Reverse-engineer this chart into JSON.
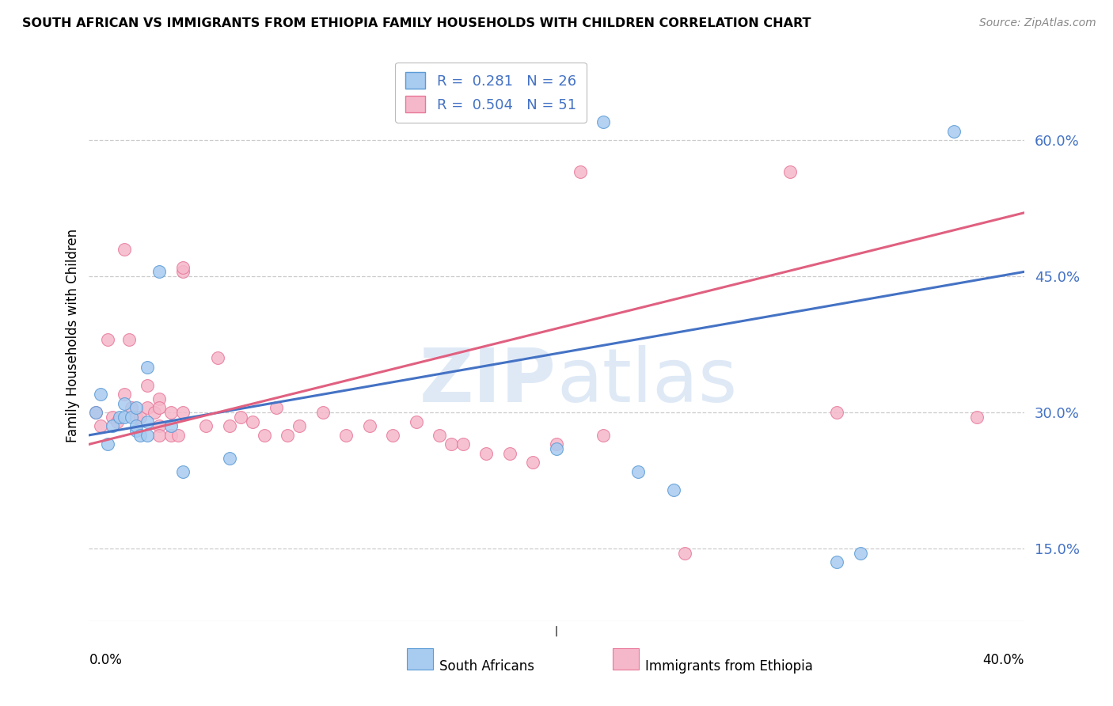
{
  "title": "SOUTH AFRICAN VS IMMIGRANTS FROM ETHIOPIA FAMILY HOUSEHOLDS WITH CHILDREN CORRELATION CHART",
  "source": "Source: ZipAtlas.com",
  "ylabel": "Family Households with Children",
  "ytick_labels": [
    "15.0%",
    "30.0%",
    "45.0%",
    "60.0%"
  ],
  "ytick_values": [
    0.15,
    0.3,
    0.45,
    0.6
  ],
  "xlim": [
    0.0,
    0.4
  ],
  "ylim": [
    0.07,
    0.7
  ],
  "watermark_zip": "ZIP",
  "watermark_atlas": "atlas",
  "legend_blue_r_val": "0.281",
  "legend_blue_n_val": "26",
  "legend_pink_r_val": "0.504",
  "legend_pink_n_val": "51",
  "legend_label_blue": "South Africans",
  "legend_label_pink": "Immigrants from Ethiopia",
  "blue_fill_color": "#A8CBF0",
  "pink_fill_color": "#F5B8CA",
  "blue_edge_color": "#5B9BD5",
  "pink_edge_color": "#E8789A",
  "blue_line_color": "#4472C4",
  "pink_line_color": "#E06080",
  "blue_scatter_x": [
    0.003,
    0.005,
    0.008,
    0.01,
    0.013,
    0.015,
    0.015,
    0.018,
    0.02,
    0.02,
    0.02,
    0.022,
    0.025,
    0.025,
    0.025,
    0.03,
    0.035,
    0.04,
    0.06,
    0.2,
    0.22,
    0.235,
    0.25,
    0.32,
    0.33,
    0.37
  ],
  "blue_scatter_y": [
    0.3,
    0.32,
    0.265,
    0.285,
    0.295,
    0.31,
    0.295,
    0.295,
    0.28,
    0.305,
    0.285,
    0.275,
    0.29,
    0.275,
    0.35,
    0.455,
    0.285,
    0.235,
    0.25,
    0.26,
    0.62,
    0.235,
    0.215,
    0.135,
    0.145,
    0.61
  ],
  "pink_scatter_x": [
    0.003,
    0.005,
    0.008,
    0.01,
    0.012,
    0.015,
    0.015,
    0.017,
    0.018,
    0.02,
    0.022,
    0.025,
    0.025,
    0.028,
    0.03,
    0.03,
    0.03,
    0.03,
    0.035,
    0.035,
    0.038,
    0.04,
    0.04,
    0.04,
    0.05,
    0.055,
    0.06,
    0.065,
    0.07,
    0.075,
    0.08,
    0.085,
    0.09,
    0.1,
    0.11,
    0.12,
    0.13,
    0.14,
    0.15,
    0.155,
    0.16,
    0.17,
    0.18,
    0.19,
    0.2,
    0.21,
    0.22,
    0.255,
    0.3,
    0.32,
    0.38
  ],
  "pink_scatter_y": [
    0.3,
    0.285,
    0.38,
    0.295,
    0.29,
    0.32,
    0.48,
    0.38,
    0.305,
    0.295,
    0.295,
    0.305,
    0.33,
    0.3,
    0.315,
    0.305,
    0.285,
    0.275,
    0.3,
    0.275,
    0.275,
    0.455,
    0.46,
    0.3,
    0.285,
    0.36,
    0.285,
    0.295,
    0.29,
    0.275,
    0.305,
    0.275,
    0.285,
    0.3,
    0.275,
    0.285,
    0.275,
    0.29,
    0.275,
    0.265,
    0.265,
    0.255,
    0.255,
    0.245,
    0.265,
    0.565,
    0.275,
    0.145,
    0.565,
    0.3,
    0.295
  ],
  "blue_line_x": [
    0.0,
    0.4
  ],
  "blue_line_y": [
    0.275,
    0.455
  ],
  "pink_line_x": [
    0.0,
    0.4
  ],
  "pink_line_y": [
    0.265,
    0.52
  ],
  "grid_color": "#CCCCCC",
  "background_color": "#FFFFFF",
  "title_color": "#000000",
  "source_color": "#888888"
}
